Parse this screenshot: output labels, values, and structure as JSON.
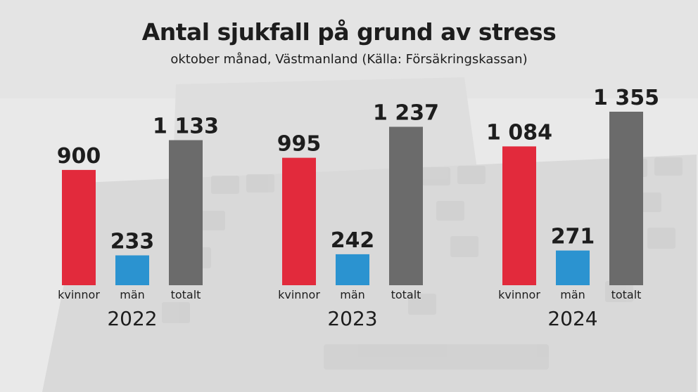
{
  "colors": {
    "kvinnor": "#e22a3c",
    "man": "#2b93d0",
    "totalt": "#6b6b6b",
    "background": "#e9e9e9",
    "text": "#1d1d1d"
  },
  "chart_data": {
    "type": "bar",
    "title": "Antal sjukfall på grund av stress",
    "subtitle": "oktober månad, Västmanland (Källa: Försäkringskassan)",
    "categories": [
      "kvinnor",
      "män",
      "totalt"
    ],
    "groups": [
      {
        "label": "2022",
        "bars": [
          {
            "category": "kvinnor",
            "value": 900,
            "label": "900"
          },
          {
            "category": "män",
            "value": 233,
            "label": "233"
          },
          {
            "category": "totalt",
            "value": 1133,
            "label": "1 133"
          }
        ]
      },
      {
        "label": "2023",
        "bars": [
          {
            "category": "kvinnor",
            "value": 995,
            "label": "995"
          },
          {
            "category": "män",
            "value": 242,
            "label": "242"
          },
          {
            "category": "totalt",
            "value": 1237,
            "label": "1 237"
          }
        ]
      },
      {
        "label": "2024",
        "bars": [
          {
            "category": "kvinnor",
            "value": 1084,
            "label": "1 084"
          },
          {
            "category": "män",
            "value": 271,
            "label": "271"
          },
          {
            "category": "totalt",
            "value": 1355,
            "label": "1 355"
          }
        ]
      }
    ],
    "ylim": [
      0,
      1355
    ],
    "grid": false,
    "legend": "none"
  }
}
